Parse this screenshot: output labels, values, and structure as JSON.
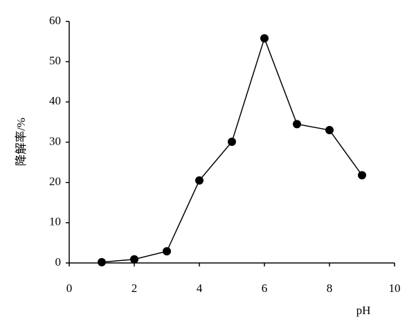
{
  "chart_data": {
    "type": "line",
    "x_label": "pH",
    "y_label": "降解率/%",
    "x": [
      1,
      2,
      3,
      4,
      5,
      6,
      7,
      8,
      9
    ],
    "series": [
      {
        "color": "#000000",
        "values": [
          0.2,
          0.9,
          2.9,
          20.5,
          30.1,
          55.8,
          34.5,
          33,
          21.8
        ]
      }
    ],
    "xlim": [
      0,
      10
    ],
    "xticks": [
      0,
      2,
      4,
      6,
      8,
      10
    ],
    "ylim": [
      0,
      60
    ],
    "yticks": [
      0,
      10,
      20,
      30,
      40,
      50,
      60
    ],
    "grid": false
  }
}
